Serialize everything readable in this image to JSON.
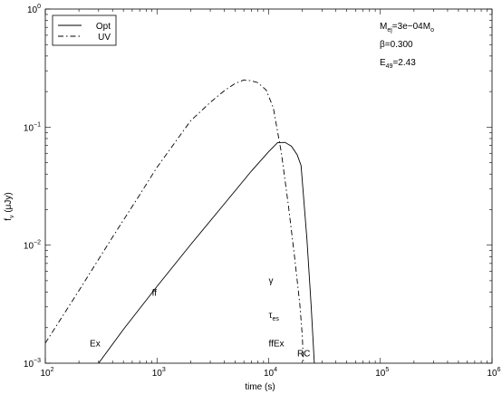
{
  "chart_data": {
    "type": "line",
    "xscale": "log",
    "yscale": "log",
    "xlim": [
      100,
      1000000
    ],
    "ylim": [
      0.001,
      1
    ],
    "xlabel": "time (s)",
    "ylabel": "f_ν (μJy)",
    "x_ticks": [
      {
        "value": 100,
        "base": "10",
        "exp": "2"
      },
      {
        "value": 1000,
        "base": "10",
        "exp": "3"
      },
      {
        "value": 10000,
        "base": "10",
        "exp": "4"
      },
      {
        "value": 100000,
        "base": "10",
        "exp": "5"
      },
      {
        "value": 1000000,
        "base": "10",
        "exp": "6"
      }
    ],
    "y_ticks": [
      {
        "value": 0.001,
        "base": "10",
        "exp": "−3"
      },
      {
        "value": 0.01,
        "base": "10",
        "exp": "−2"
      },
      {
        "value": 0.1,
        "base": "10",
        "exp": "−1"
      },
      {
        "value": 1,
        "base": "10",
        "exp": "0"
      }
    ],
    "legend": {
      "position": "top-left",
      "entries": [
        {
          "label": "Opt",
          "style": "solid"
        },
        {
          "label": "UV",
          "style": "dashdot"
        }
      ]
    },
    "series": [
      {
        "name": "Opt",
        "style": "solid",
        "color": "#000000",
        "points": [
          [
            300,
            0.001
          ],
          [
            500,
            0.00193
          ],
          [
            1000,
            0.00447
          ],
          [
            2000,
            0.0101
          ],
          [
            4000,
            0.0223
          ],
          [
            7000,
            0.0424
          ],
          [
            10000,
            0.0619
          ],
          [
            12000,
            0.0737
          ],
          [
            14000,
            0.0743
          ],
          [
            16000,
            0.0688
          ],
          [
            18000,
            0.0583
          ],
          [
            19500,
            0.0473
          ],
          [
            22000,
            0.0113
          ],
          [
            24000,
            0.00309
          ],
          [
            26000,
            0.000782
          ],
          [
            30000,
            0.00098
          ]
        ]
      },
      {
        "name": "UV",
        "style": "dashdot",
        "color": "#000000",
        "points": [
          [
            100,
            0.00148
          ],
          [
            200,
            0.00412
          ],
          [
            400,
            0.0117
          ],
          [
            700,
            0.0267
          ],
          [
            1000,
            0.0456
          ],
          [
            2000,
            0.113
          ],
          [
            3000,
            0.162
          ],
          [
            4000,
            0.203
          ],
          [
            5000,
            0.234
          ],
          [
            6000,
            0.251
          ],
          [
            7000,
            0.247
          ],
          [
            8000,
            0.238
          ],
          [
            9500,
            0.206
          ],
          [
            11000,
            0.146
          ],
          [
            13000,
            0.0604
          ],
          [
            15000,
            0.0219
          ],
          [
            17000,
            0.00817
          ],
          [
            19000,
            0.00317
          ],
          [
            20000,
            0.00171
          ],
          [
            20500,
            0.001
          ]
        ]
      }
    ],
    "parameters": [
      {
        "base": "M",
        "sub": "ej",
        "mid": "=3e−04M",
        "sub2": "o"
      },
      {
        "base": "β=0.300"
      },
      {
        "base": "E",
        "sub": "49",
        "mid": "=2.43"
      }
    ],
    "annotations": [
      {
        "text": "Ex",
        "x": 250,
        "y": 0.00139
      },
      {
        "text": "ff",
        "x": 900,
        "y": 0.00373
      },
      {
        "text": "γ",
        "x": 10000,
        "y": 0.00473
      },
      {
        "text": "τ",
        "sub": "es",
        "x": 10000,
        "y": 0.00242
      },
      {
        "text": "ffEx",
        "x": 10000,
        "y": 0.00139
      },
      {
        "text": "RC",
        "x": 18000,
        "y": 0.00114
      }
    ]
  }
}
